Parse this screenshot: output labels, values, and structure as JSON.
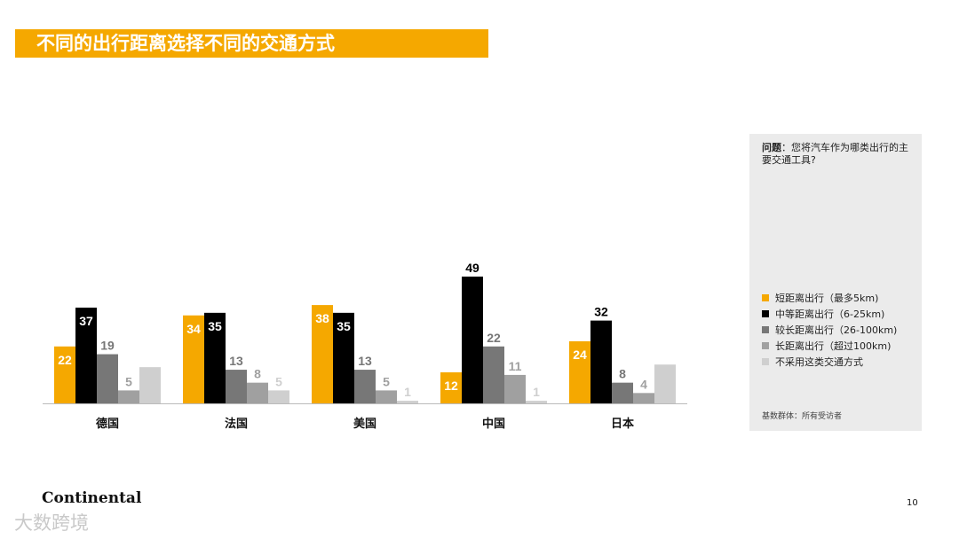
{
  "title": "不同的出行距离选择不同的交通方式",
  "question": {
    "label": "问题",
    "text": "：您将汽车作为哪类出行的主要交通工具?"
  },
  "base_note": "基数群体：所有受访者",
  "logo_text": "Continental",
  "watermark": "大数跨境",
  "page_number": "10",
  "colors": {
    "accent": "#f5a800",
    "panel": "#ebebeb"
  },
  "chart_data": {
    "type": "bar",
    "categories": [
      "德国",
      "法国",
      "美国",
      "中国",
      "日本"
    ],
    "ylim": [
      0,
      55
    ],
    "series": [
      {
        "name": "短距离出行（最多5km)",
        "color": "#f5a800",
        "label_color": "#ffffff",
        "values": [
          22,
          34,
          38,
          12,
          24
        ]
      },
      {
        "name": "中等距离出行（6-25km)",
        "color": "#000000",
        "label_color": "#ffffff",
        "values": [
          37,
          35,
          35,
          49,
          32
        ]
      },
      {
        "name": "较长距离出行（26-100km)",
        "color": "#777777",
        "label_color": "#777777",
        "values": [
          19,
          13,
          13,
          22,
          8
        ]
      },
      {
        "name": "长距离出行（超过100km)",
        "color": "#a0a0a0",
        "label_color": "#a0a0a0",
        "values": [
          5,
          8,
          5,
          11,
          4
        ]
      },
      {
        "name": "不采用这类交通方式",
        "color": "#cfcfcf",
        "label_color": "#cfcfcf",
        "values": [
          14,
          5,
          1,
          1,
          15
        ]
      }
    ],
    "value_labels": [
      [
        "22",
        "37",
        "19",
        "5",
        ""
      ],
      [
        "34",
        "35",
        "13",
        "8",
        "5"
      ],
      [
        "38",
        "35",
        "13",
        "5",
        "1"
      ],
      [
        "12",
        "49",
        "22",
        "11",
        "1"
      ],
      [
        "24",
        "32",
        "8",
        "4",
        ""
      ]
    ],
    "legend_position": "right",
    "grid": false
  }
}
